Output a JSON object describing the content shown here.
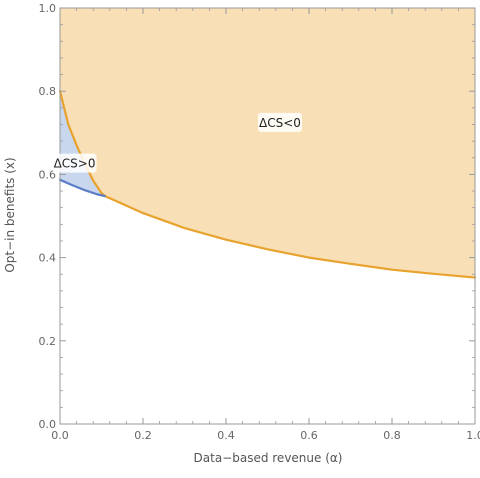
{
  "chart_data": {
    "type": "area",
    "xlabel": "Data−based revenue (α)",
    "ylabel": "Opt−in benefits (x)",
    "xlim": [
      0,
      1
    ],
    "ylim": [
      0,
      1
    ],
    "x_ticks": [
      "0.0",
      "0.2",
      "0.4",
      "0.6",
      "0.8",
      "1.0"
    ],
    "y_ticks": [
      "0.0",
      "0.2",
      "0.4",
      "0.6",
      "0.8",
      "1.0"
    ],
    "x_tick_values": [
      0,
      0.2,
      0.4,
      0.6,
      0.8,
      1.0
    ],
    "y_tick_values": [
      0,
      0.2,
      0.4,
      0.6,
      0.8,
      1.0
    ],
    "grid": false,
    "frame": true,
    "series": [
      {
        "kind": "boundary",
        "color": "#e8a22e",
        "x": [
          0.0,
          0.02,
          0.04,
          0.06,
          0.08,
          0.1,
          0.108
        ],
        "y": [
          0.8,
          0.72,
          0.67,
          0.625,
          0.585,
          0.555,
          0.548
        ]
      },
      {
        "kind": "boundary",
        "color": "#e8a22e",
        "x": [
          0.108,
          0.2,
          0.3,
          0.4,
          0.5,
          0.6,
          0.7,
          0.8,
          0.9,
          1.0
        ],
        "y": [
          0.548,
          0.507,
          0.471,
          0.443,
          0.42,
          0.4,
          0.385,
          0.371,
          0.361,
          0.352
        ]
      },
      {
        "kind": "boundary",
        "color": "#5b7dc6",
        "x": [
          0.0,
          0.03,
          0.06,
          0.09,
          0.108
        ],
        "y": [
          0.587,
          0.574,
          0.562,
          0.552,
          0.548
        ]
      }
    ],
    "regions": [
      {
        "name": "ΔCS<0",
        "fill": "#f8dfb6",
        "label_at": [
          0.53,
          0.725
        ]
      },
      {
        "name": "ΔCS>0",
        "fill": "#c8d6ee",
        "label_at": [
          0.035,
          0.627
        ]
      }
    ],
    "colors": {
      "frame": "#999999",
      "tick_label": "#666666",
      "axis_label": "#555555"
    }
  }
}
